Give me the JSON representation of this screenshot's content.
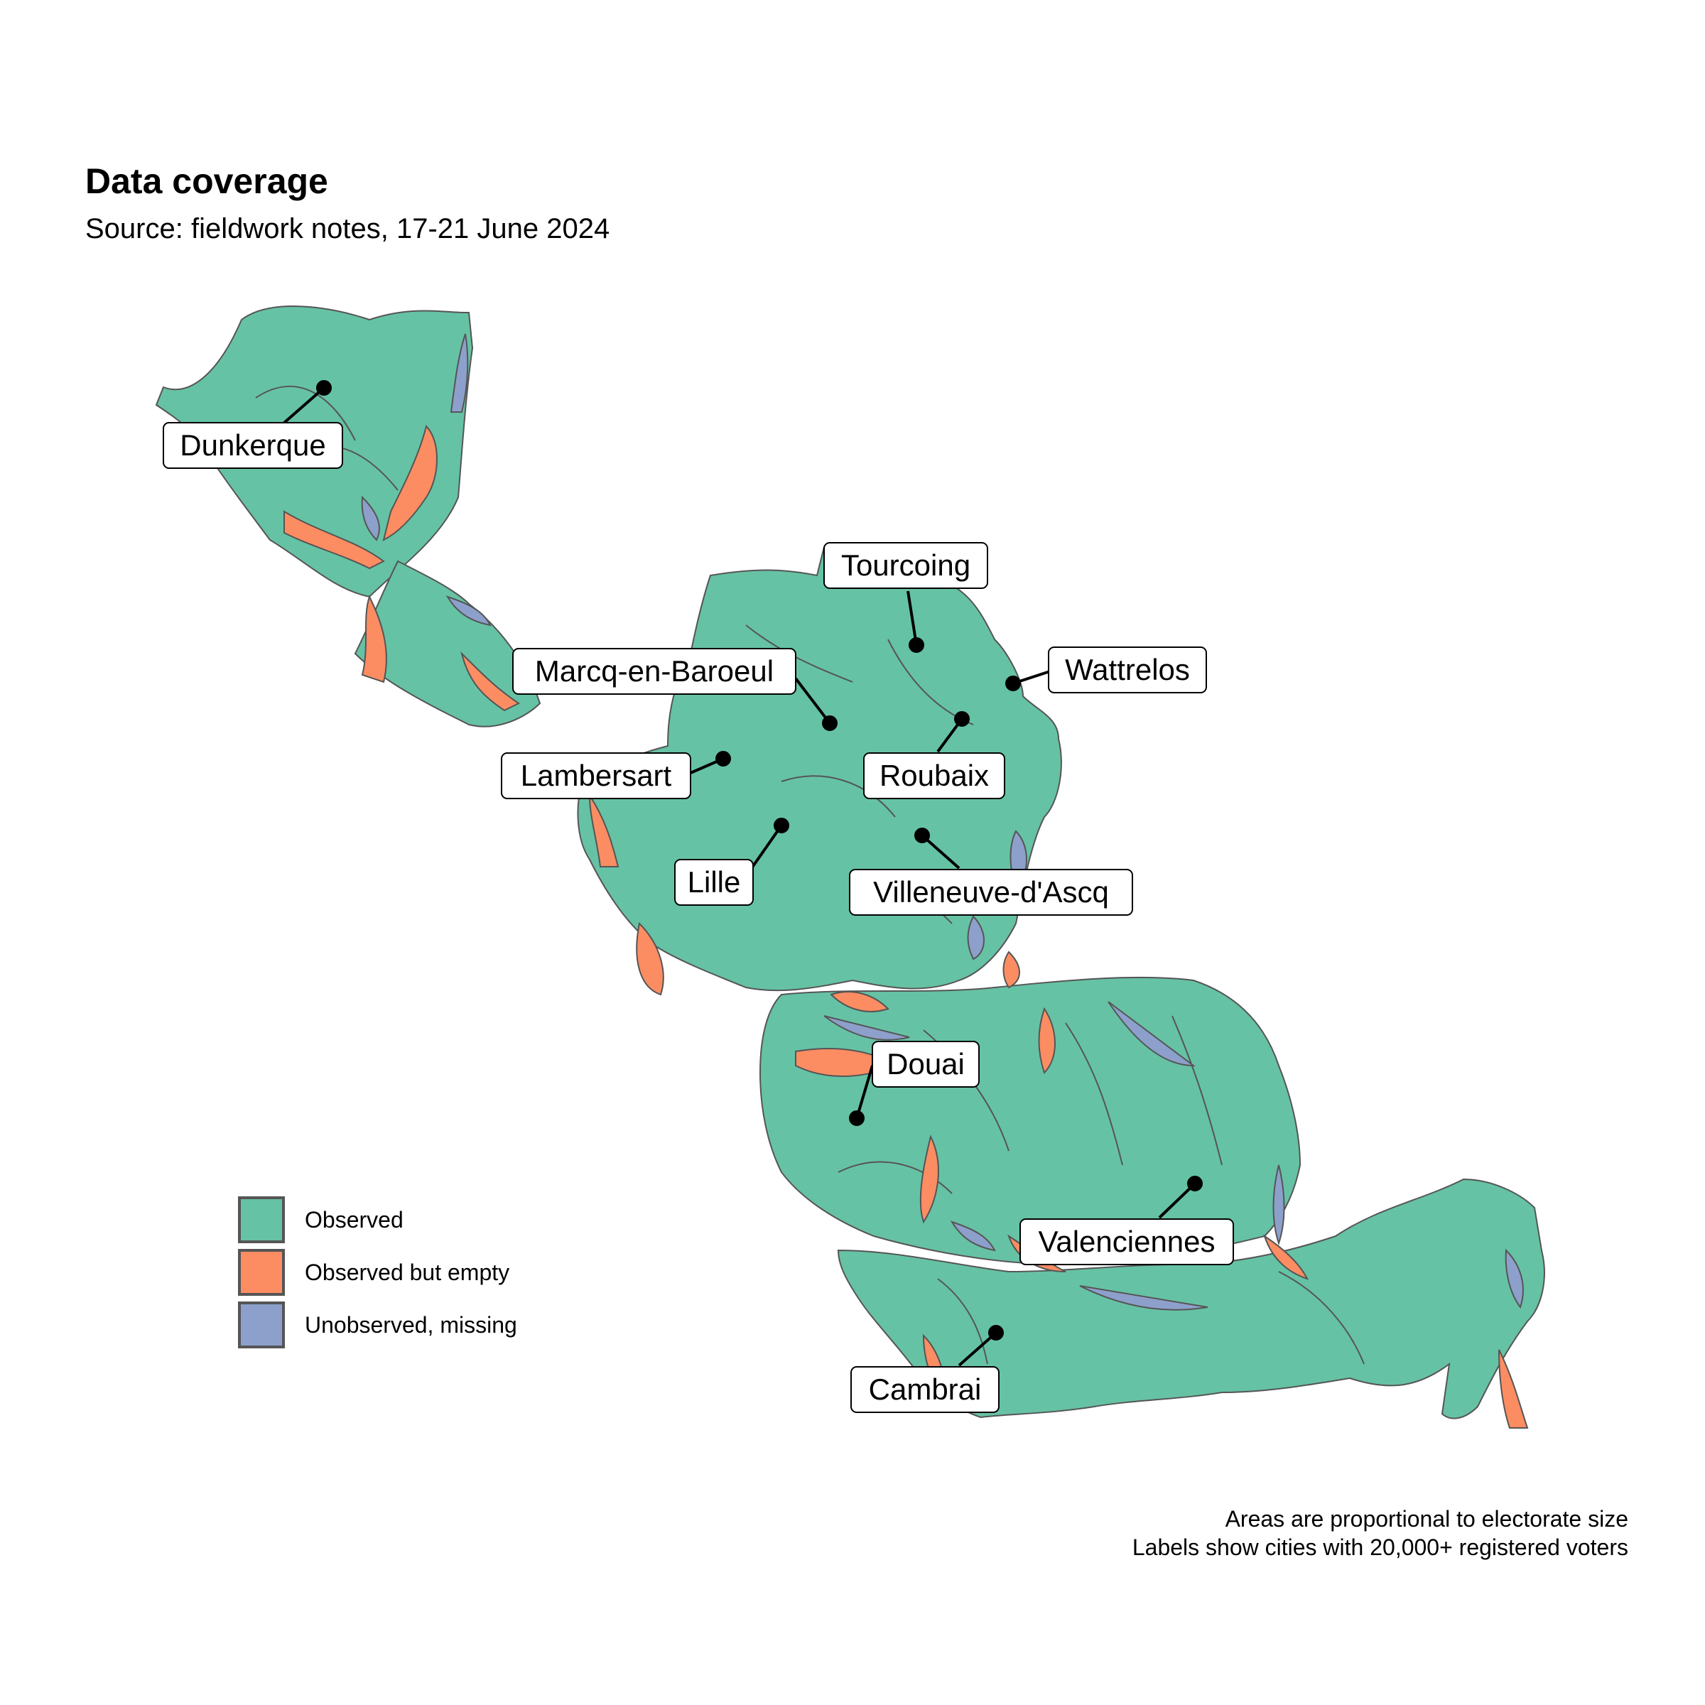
{
  "header": {
    "title": "Data coverage",
    "subtitle": "Source: fieldwork notes, 17-21 June 2024"
  },
  "colors": {
    "observed": "#66c2a5",
    "observed_empty": "#fc8d62",
    "unobserved": "#8da0cb",
    "outline": "#555555"
  },
  "legend": {
    "items": [
      {
        "label": "Observed",
        "color": "#66c2a5"
      },
      {
        "label": "Observed but empty",
        "color": "#fc8d62"
      },
      {
        "label": "Unobserved, missing",
        "color": "#8da0cb"
      }
    ]
  },
  "caption": {
    "line1": "Areas are proportional to electorate size",
    "line2": "Labels show cities with 20,000+ registered voters"
  },
  "cities": [
    "Dunkerque",
    "Tourcoing",
    "Wattrelos",
    "Marcq-en-Baroeul",
    "Roubaix",
    "Lambersart",
    "Lille",
    "Villeneuve-d'Ascq",
    "Douai",
    "Valenciennes",
    "Cambrai"
  ]
}
